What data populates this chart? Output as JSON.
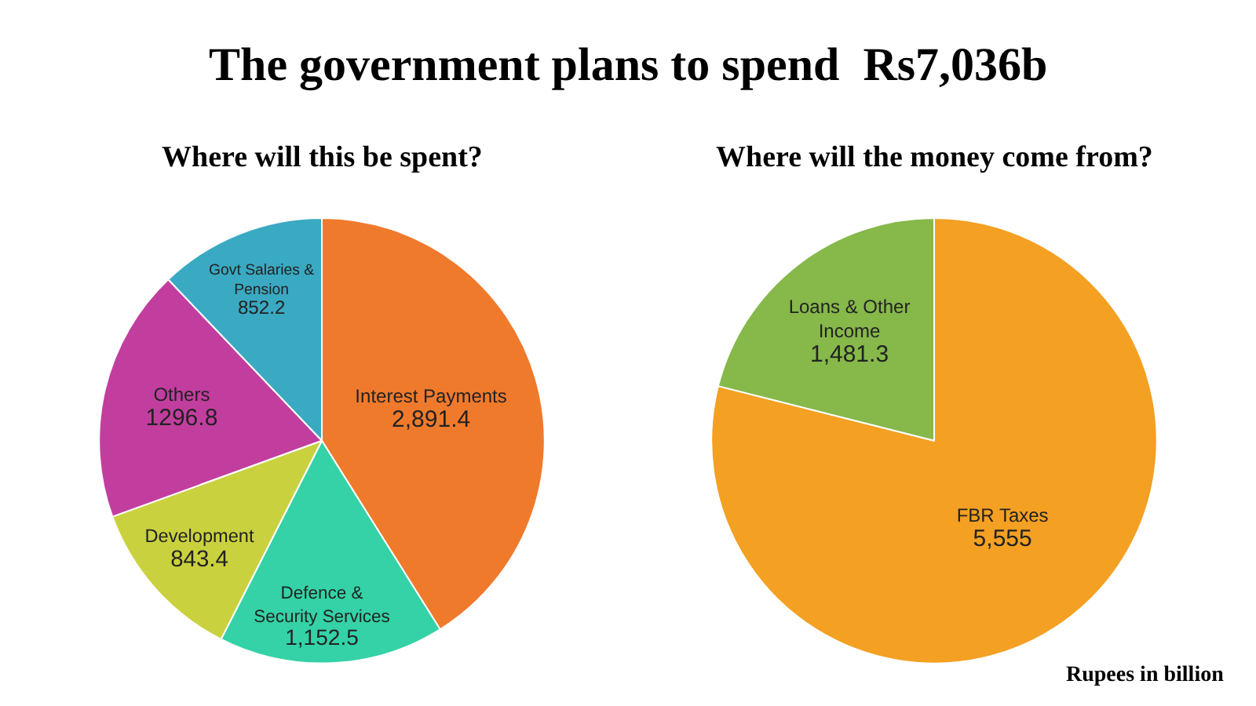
{
  "chart_data": [
    {
      "type": "pie",
      "title": "The government plans to spend  Rs7,036b",
      "subtitle": "Where will this be spent?",
      "categories": [
        "Interest Payments",
        "Defence & Security Services",
        "Development",
        "Others",
        "Govt Salaries & Pension"
      ],
      "values": [
        2891.4,
        1152.5,
        843.4,
        1296.8,
        852.2
      ],
      "value_labels": [
        "2,891.4",
        "1,152.5",
        "843.4",
        "1296.8",
        "852.2"
      ],
      "colors": [
        "#f07a2c",
        "#34d2a6",
        "#c9d13e",
        "#c23e9e",
        "#3aa9c2"
      ],
      "legend": false
    },
    {
      "type": "pie",
      "title": "Where will the money come from?",
      "categories": [
        "FBR Taxes",
        "Loans & Other Income"
      ],
      "values": [
        5555,
        1481.3
      ],
      "value_labels": [
        "5,555",
        "1,481.3"
      ],
      "colors": [
        "#f4a023",
        "#86b84a"
      ],
      "legend": false,
      "annotations": [
        "Rupees in billion"
      ]
    }
  ]
}
